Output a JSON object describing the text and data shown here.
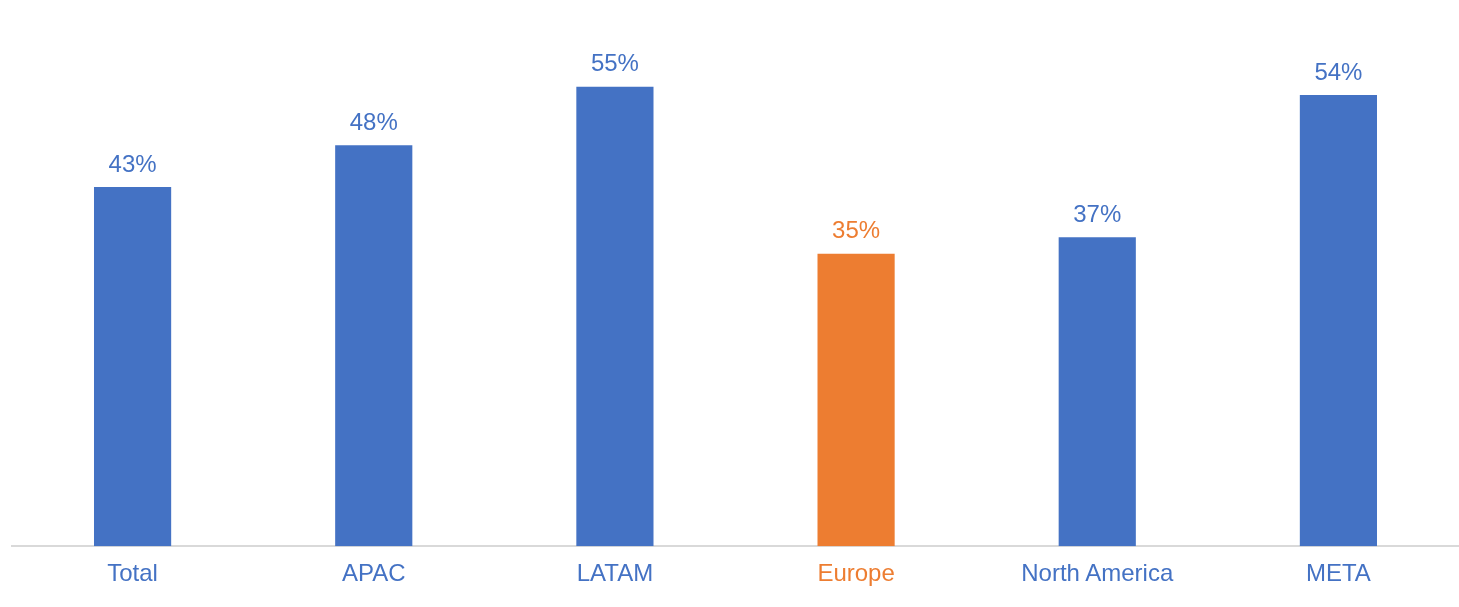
{
  "chart_data": {
    "type": "bar",
    "categories": [
      "Total",
      "APAC",
      "LATAM",
      "Europe",
      "North America",
      "META"
    ],
    "values": [
      43,
      48,
      55,
      35,
      37,
      54
    ],
    "colors": [
      "#4472c4",
      "#4472c4",
      "#4472c4",
      "#ed7d31",
      "#4472c4",
      "#4472c4"
    ],
    "value_labels": [
      "43%",
      "48%",
      "55%",
      "35%",
      "37%",
      "54%"
    ],
    "tick_labels": "x",
    "grid": false,
    "legend": false
  }
}
